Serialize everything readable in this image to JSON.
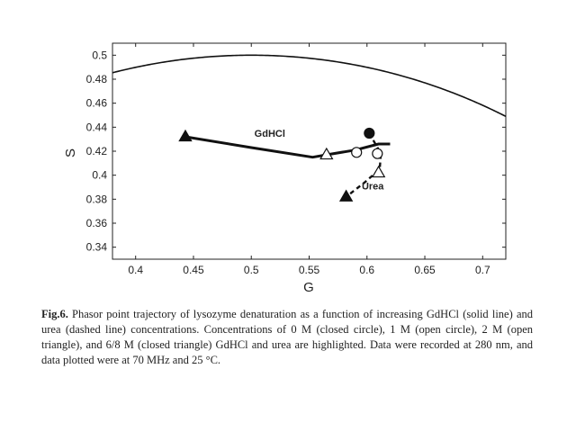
{
  "chart_data": {
    "type": "scatter",
    "xlabel": "G",
    "ylabel": "S",
    "xlim": [
      0.38,
      0.72
    ],
    "ylim": [
      0.33,
      0.51
    ],
    "xticks": [
      0.4,
      0.45,
      0.5,
      0.55,
      0.6,
      0.65,
      0.7
    ],
    "yticks": [
      0.34,
      0.36,
      0.38,
      0.4,
      0.42,
      0.44,
      0.46,
      0.48,
      0.5
    ],
    "xtick_labels": [
      "0.4",
      "0.45",
      "0.5",
      "0.55",
      "0.6",
      "0.65",
      "0.7"
    ],
    "ytick_labels": [
      "0.34",
      "0.36",
      "0.38",
      "0.4",
      "0.42",
      "0.44",
      "0.46",
      "0.48",
      "0.5"
    ],
    "grid": false,
    "semicircle": {
      "center": [
        0.5,
        0
      ],
      "radius": 0.5
    },
    "series": [
      {
        "name": "GdHCl",
        "style": "solid",
        "line": [
          [
            0.443,
            0.432
          ],
          [
            0.5,
            0.423
          ],
          [
            0.553,
            0.415
          ],
          [
            0.565,
            0.417
          ],
          [
            0.59,
            0.421
          ],
          [
            0.61,
            0.426
          ],
          [
            0.62,
            0.426
          ]
        ],
        "points": [
          {
            "x": 0.602,
            "y": 0.435,
            "marker": "closed-circle"
          },
          {
            "x": 0.591,
            "y": 0.419,
            "marker": "open-circle"
          },
          {
            "x": 0.565,
            "y": 0.417,
            "marker": "open-triangle"
          },
          {
            "x": 0.443,
            "y": 0.432,
            "marker": "closed-triangle"
          }
        ]
      },
      {
        "name": "Urea",
        "style": "dashed",
        "line": [
          [
            0.602,
            0.435
          ],
          [
            0.612,
            0.418
          ],
          [
            0.611,
            0.405
          ],
          [
            0.598,
            0.394
          ],
          [
            0.582,
            0.382
          ]
        ],
        "points": [
          {
            "x": 0.609,
            "y": 0.418,
            "marker": "open-circle"
          },
          {
            "x": 0.61,
            "y": 0.402,
            "marker": "open-triangle"
          },
          {
            "x": 0.582,
            "y": 0.382,
            "marker": "closed-triangle"
          }
        ]
      }
    ],
    "annotations": [
      {
        "text": "GdHCl",
        "x": 0.516,
        "y": 0.432
      },
      {
        "text": "Urea",
        "x": 0.605,
        "y": 0.388
      }
    ]
  },
  "caption": {
    "label": "Fig.6.",
    "text": "Phasor point trajectory of lysozyme denaturation as a function of increasing GdHCl (solid line) and urea (dashed line) concentrations. Concentrations of 0 M (closed circle), 1 M (open circle), 2 M (open triangle), and 6/8 M (closed triangle) GdHCl and urea are highlighted. Data were recorded at 280 nm, and data plotted were at 70 MHz and 25 °C."
  }
}
